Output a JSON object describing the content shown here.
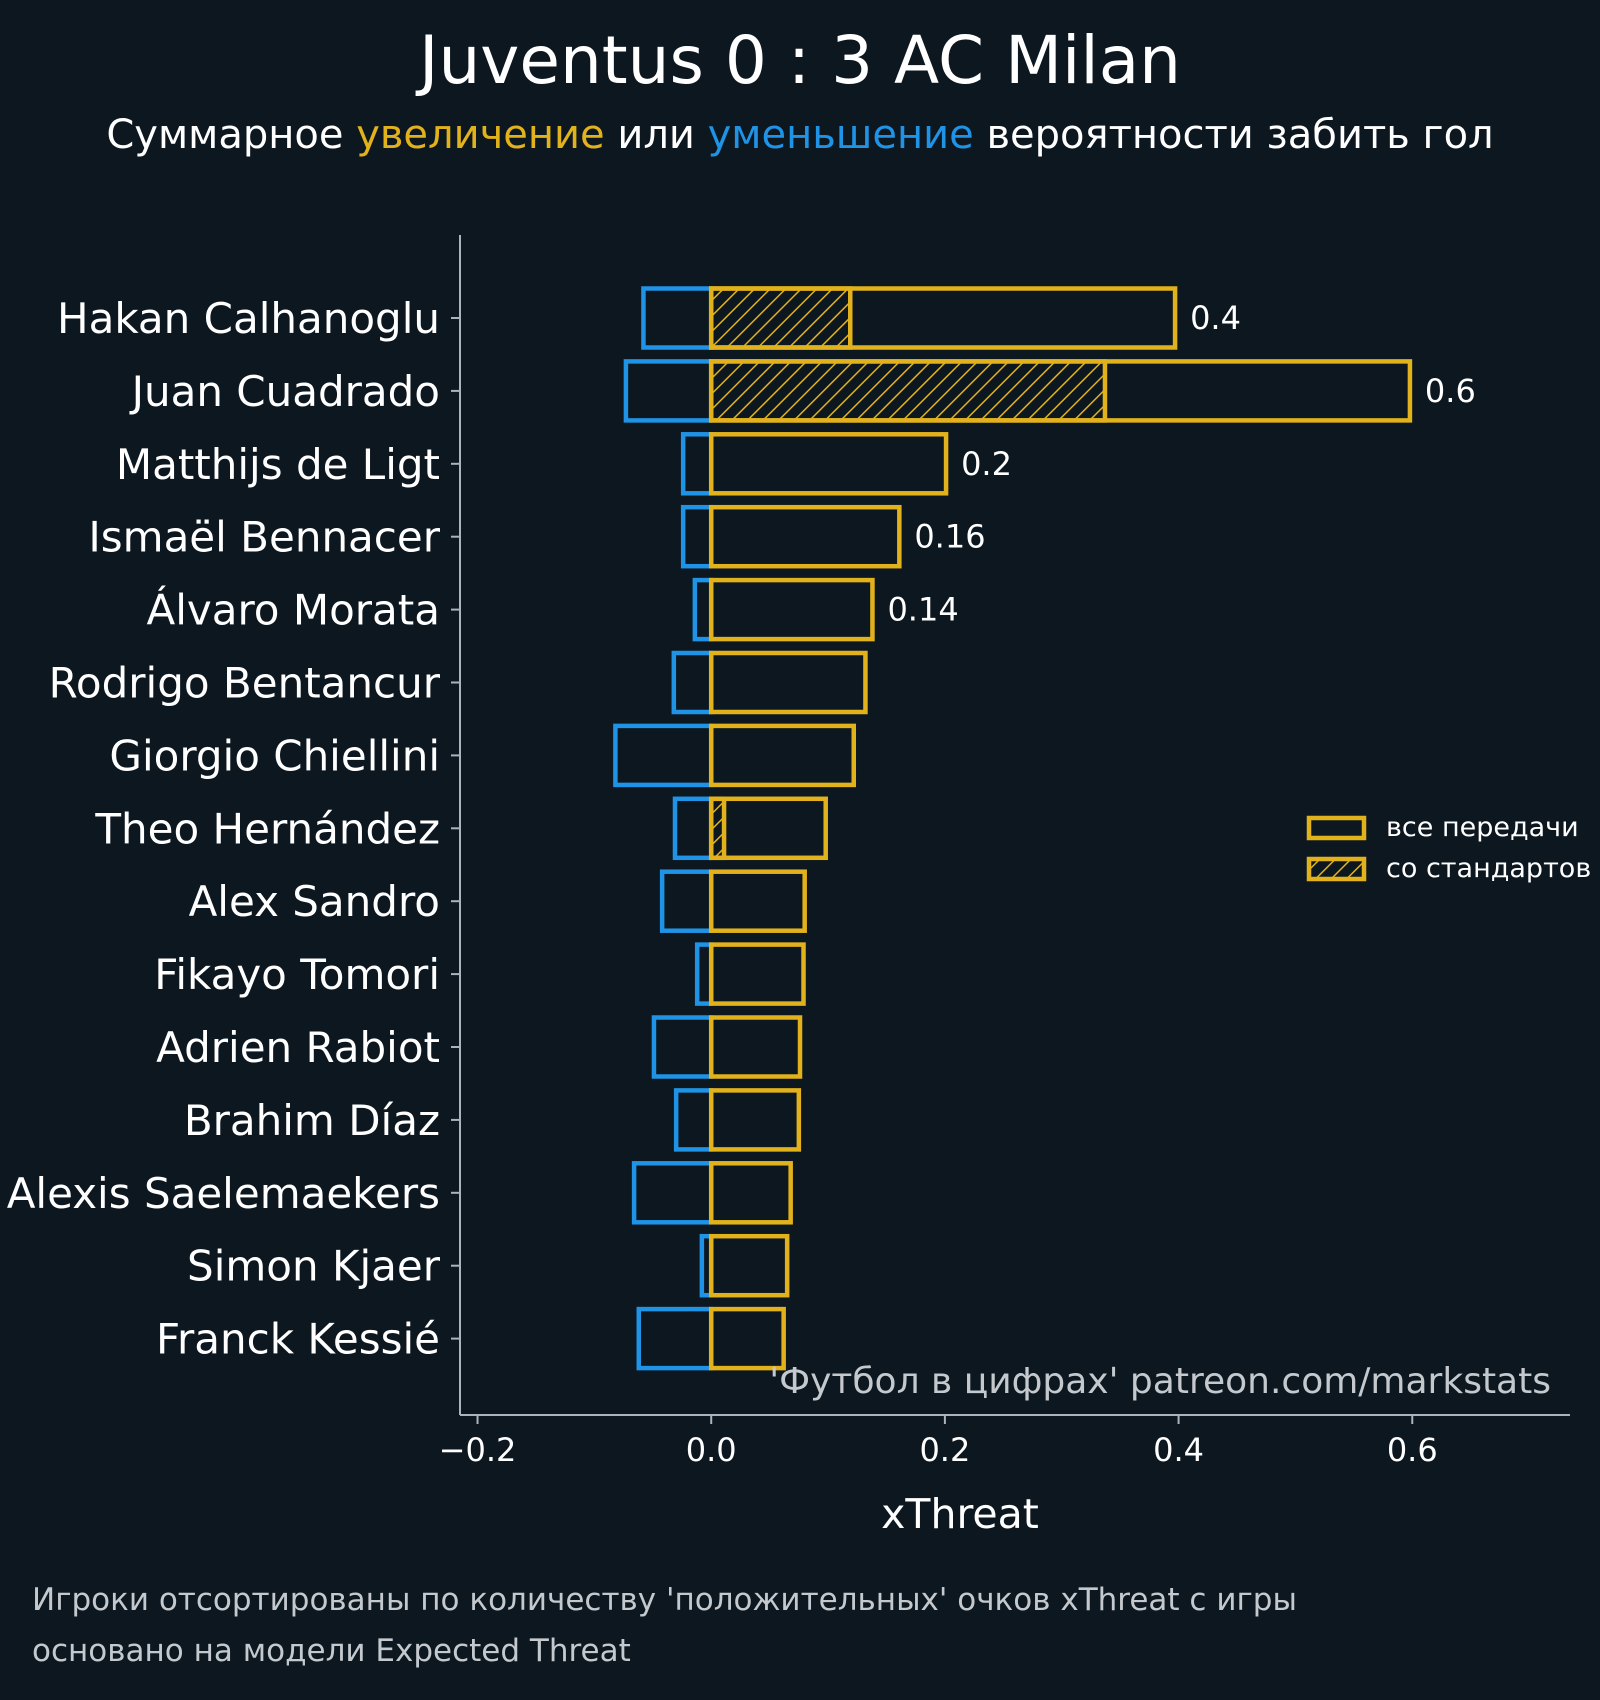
{
  "header": {
    "title": "Juventus 0 : 3 AC Milan",
    "subtitle_parts": [
      {
        "text": "Суммарное ",
        "color": "#ffffff"
      },
      {
        "text": "увеличение",
        "color": "#e2b21c"
      },
      {
        "text": " или ",
        "color": "#ffffff"
      },
      {
        "text": "уменьшение",
        "color": "#1f93e5"
      },
      {
        "text": " вероятности забить гол",
        "color": "#ffffff"
      }
    ]
  },
  "chart_data": {
    "type": "bar",
    "orientation": "horizontal",
    "xlabel": "xThreat",
    "xlim": [
      -0.215,
      0.735
    ],
    "xticks": [
      -0.2,
      0.0,
      0.2,
      0.4,
      0.6
    ],
    "xtick_labels": [
      "−0.2",
      "0.0",
      "0.2",
      "0.4",
      "0.6"
    ],
    "colors": {
      "positive": "#e2b21c",
      "negative": "#1f93e5"
    },
    "watermark": "'Футбол в цифрах' patreon.com/markstats",
    "legend": {
      "placement": "right",
      "items": [
        {
          "label": "все передачи",
          "hatched": false
        },
        {
          "label": "со стандартов",
          "hatched": true
        }
      ]
    },
    "categories": [
      "Hakan Calhanoglu",
      "Juan Cuadrado",
      "Matthijs de Ligt",
      "Ismaël Bennacer",
      "Álvaro Morata",
      "Rodrigo Bentancur",
      "Giorgio Chiellini",
      "Theo Hernández",
      "Alex Sandro",
      "Fikayo Tomori",
      "Adrien Rabiot",
      "Brahim Díaz",
      "Alexis Saelemaekers",
      "Simon Kjaer",
      "Franck Kessié"
    ],
    "series": [
      {
        "name": "все передачи",
        "role": "positive",
        "values": [
          0.397,
          0.598,
          0.201,
          0.161,
          0.138,
          0.132,
          0.122,
          0.098,
          0.08,
          0.079,
          0.076,
          0.075,
          0.068,
          0.065,
          0.062
        ]
      },
      {
        "name": "со стандартов",
        "role": "positive-hatched",
        "values": [
          0.119,
          0.337,
          0,
          0,
          0,
          0,
          0,
          0.011,
          0,
          0,
          0,
          0,
          0,
          0,
          0
        ]
      },
      {
        "role": "negative",
        "values": [
          -0.058,
          -0.073,
          -0.024,
          -0.024,
          -0.014,
          -0.032,
          -0.082,
          -0.031,
          -0.042,
          -0.012,
          -0.049,
          -0.03,
          -0.066,
          -0.008,
          -0.062
        ]
      }
    ],
    "value_labels": [
      "0.4",
      "0.6",
      "0.2",
      "0.16",
      "0.14",
      "",
      "",
      "",
      "",
      "",
      "",
      "",
      "",
      "",
      ""
    ]
  },
  "footnotes": [
    "Игроки отсортированы по количеству 'положительных' очков xThreat с игры",
    "основано на модели Expected Threat"
  ]
}
